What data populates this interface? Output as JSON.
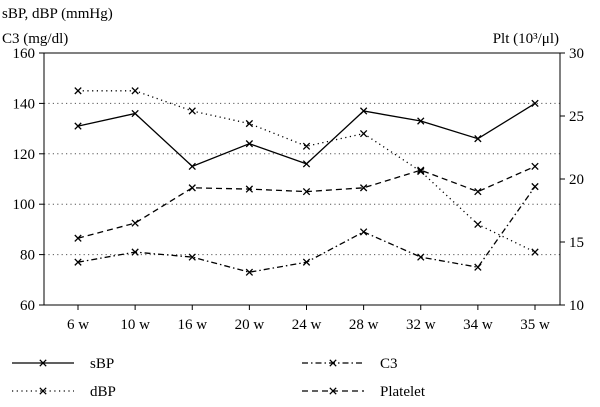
{
  "chart_data": {
    "type": "line",
    "categories": [
      "6 w",
      "10 w",
      "16 w",
      "20 w",
      "24 w",
      "28 w",
      "32 w",
      "34 w",
      "35 w"
    ],
    "left_axis": {
      "label_line1": "sBP, dBP (mmHg)",
      "label_line2": "C3 (mg/dl)",
      "ylim": [
        60,
        160
      ],
      "ticks": [
        "60",
        "80",
        "100",
        "120",
        "140",
        "160"
      ],
      "tick_values": [
        60,
        80,
        100,
        120,
        140,
        160
      ]
    },
    "right_axis": {
      "label": "Plt (10³/μl)",
      "ylim": [
        10,
        30
      ],
      "ticks": [
        "10",
        "15",
        "20",
        "25",
        "30"
      ],
      "tick_values": [
        10,
        15,
        20,
        25,
        30
      ]
    },
    "grid": {
      "horizontal": true,
      "style": "dotted",
      "values": [
        80,
        100,
        120,
        140
      ]
    },
    "legend_position": "bottom",
    "series": [
      {
        "name": "sBP",
        "axis": "left",
        "style": "solid",
        "values": [
          131,
          136,
          115,
          124,
          116,
          137,
          133,
          126,
          140
        ]
      },
      {
        "name": "dBP",
        "axis": "left",
        "style": "dotted",
        "values": [
          145,
          145,
          137,
          132,
          123,
          128,
          113,
          92,
          81
        ]
      },
      {
        "name": "C3",
        "axis": "left",
        "style": "dashdot",
        "values": [
          77,
          81,
          79,
          73,
          77,
          89,
          79,
          75,
          107
        ]
      },
      {
        "name": "Platelet",
        "axis": "right",
        "style": "dashed",
        "values": [
          15.3,
          16.5,
          19.3,
          19.2,
          19.0,
          19.3,
          20.7,
          19.0,
          21.0
        ]
      }
    ],
    "legend": [
      {
        "label": "sBP",
        "series": "sBP"
      },
      {
        "label": "dBP",
        "series": "dBP"
      },
      {
        "label": "C3",
        "series": "C3"
      },
      {
        "label": "Platelet",
        "series": "Platelet"
      }
    ]
  },
  "colors": {
    "line": "#000000",
    "grid": "#555555",
    "background": "#ffffff"
  }
}
